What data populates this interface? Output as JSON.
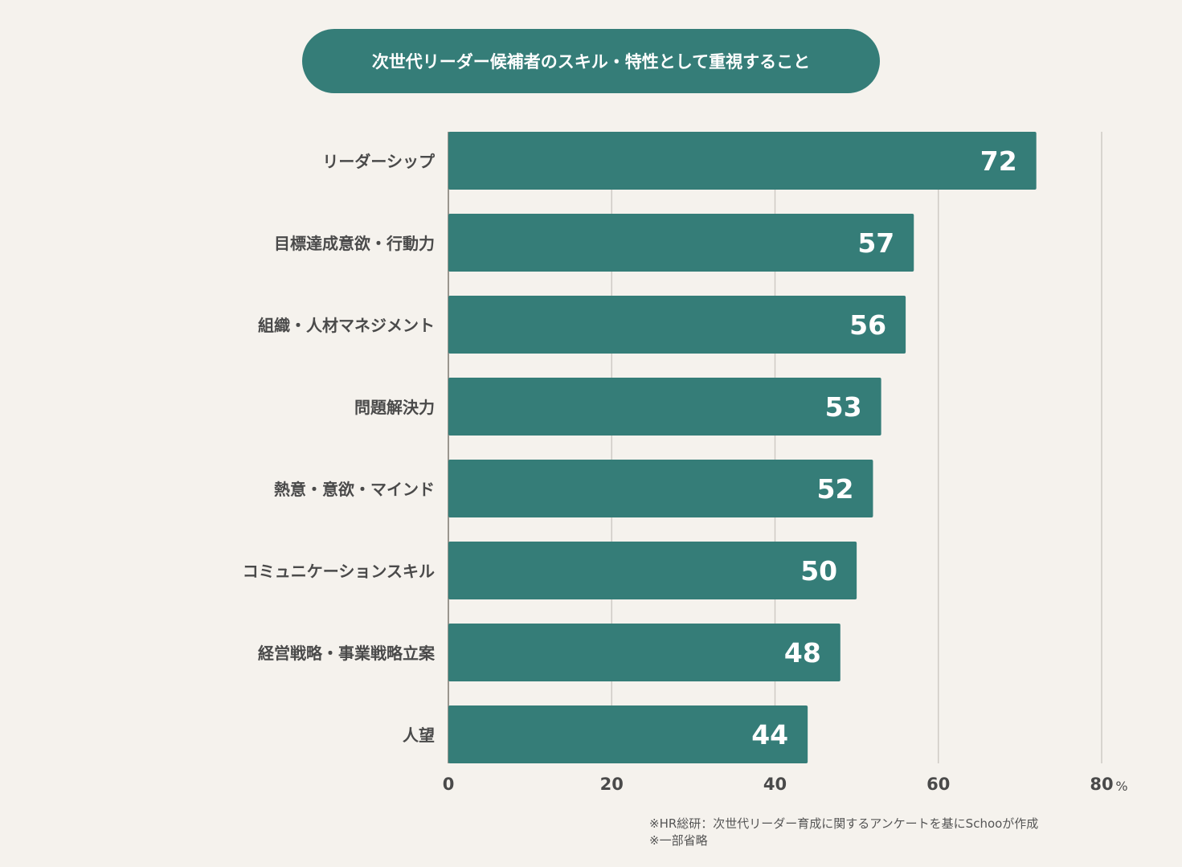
{
  "chart_data": {
    "type": "bar",
    "orientation": "horizontal",
    "title": "次世代リーダー候補者のスキル・特性として重視すること",
    "categories": [
      "リーダーシップ",
      "目標達成意欲・行動力",
      "組織・人材マネジメント",
      "問題解決力",
      "熱意・意欲・マインド",
      "コミュニケーションスキル",
      "経営戦略・事業戦略立案",
      "人望"
    ],
    "values": [
      72,
      57,
      56,
      53,
      52,
      50,
      48,
      44
    ],
    "xlim": [
      0,
      80
    ],
    "xticks": [
      "0",
      "20",
      "40",
      "60",
      "80"
    ],
    "xunit": "%",
    "grid": true,
    "colors": {
      "bar": "#357d78",
      "background": "#f5f2ed",
      "grid": "#cfcbc5",
      "label": "#4a4a4a"
    }
  },
  "notes": [
    "※HR総研：次世代リーダー育成に関するアンケートを基にSchooが作成",
    "※一部省略"
  ]
}
